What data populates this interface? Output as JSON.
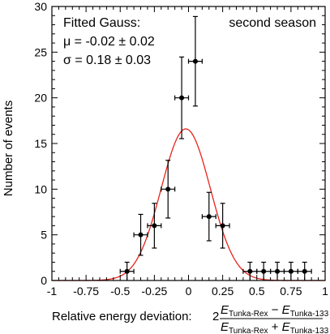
{
  "chart_data": {
    "type": "scatter",
    "title": "",
    "xlabel": "Relative energy deviation:",
    "xlabel_formula": {
      "factor": "2",
      "numerator": [
        "E",
        "Tunka-Rex",
        " − ",
        "E",
        "Tunka-133"
      ],
      "denominator": [
        "E",
        "Tunka-Rex",
        " + ",
        "E",
        "Tunka-133"
      ]
    },
    "ylabel": "Number of events",
    "xlim": [
      -1,
      1
    ],
    "ylim": [
      0,
      30
    ],
    "xticks": [
      -1,
      -0.75,
      -0.5,
      -0.25,
      0,
      0.25,
      0.5,
      0.75,
      1
    ],
    "xtick_labels": [
      "-1",
      "-0.75",
      "-0.5",
      "-0.25",
      "0",
      "0.25",
      "0.5",
      "0.75",
      "1"
    ],
    "yticks": [
      0,
      5,
      10,
      15,
      20,
      25,
      30
    ],
    "ytick_labels": [
      "0",
      "5",
      "10",
      "15",
      "20",
      "25",
      "30"
    ],
    "grid": false,
    "annotations": {
      "fit_title": "Fitted Gauss:",
      "mu_line": "μ = -0.02 ± 0.02",
      "sigma_line": "σ =  0.18 ± 0.03",
      "season": "second season"
    },
    "points": [
      {
        "x": -0.45,
        "y": 1,
        "xerr": 0.05,
        "yerr": 1.0
      },
      {
        "x": -0.35,
        "y": 5,
        "xerr": 0.05,
        "yerr": 2.24
      },
      {
        "x": -0.25,
        "y": 6,
        "xerr": 0.05,
        "yerr": 2.45
      },
      {
        "x": -0.15,
        "y": 10,
        "xerr": 0.05,
        "yerr": 3.16
      },
      {
        "x": -0.05,
        "y": 20,
        "xerr": 0.05,
        "yerr": 4.47
      },
      {
        "x": 0.05,
        "y": 24,
        "xerr": 0.05,
        "yerr": 4.9
      },
      {
        "x": 0.15,
        "y": 7,
        "xerr": 0.05,
        "yerr": 2.65
      },
      {
        "x": 0.25,
        "y": 6,
        "xerr": 0.05,
        "yerr": 2.45
      },
      {
        "x": 0.55,
        "y": 1,
        "xerr": 0.05,
        "yerr": 1.0
      },
      {
        "x": 0.65,
        "y": 1,
        "xerr": 0.05,
        "yerr": 1.0
      },
      {
        "x": 0.75,
        "y": 1,
        "xerr": 0.05,
        "yerr": 1.0
      },
      {
        "x": 0.85,
        "y": 1,
        "xerr": 0.05,
        "yerr": 1.0
      },
      {
        "x": 0.45,
        "y": 1,
        "xerr": 0.05,
        "yerr": 1.0
      }
    ],
    "fit_curve": {
      "type": "gauss",
      "amplitude": 16.6,
      "mu": -0.02,
      "sigma": 0.18,
      "color": "#e8231b"
    },
    "marker_color": "#000000"
  }
}
